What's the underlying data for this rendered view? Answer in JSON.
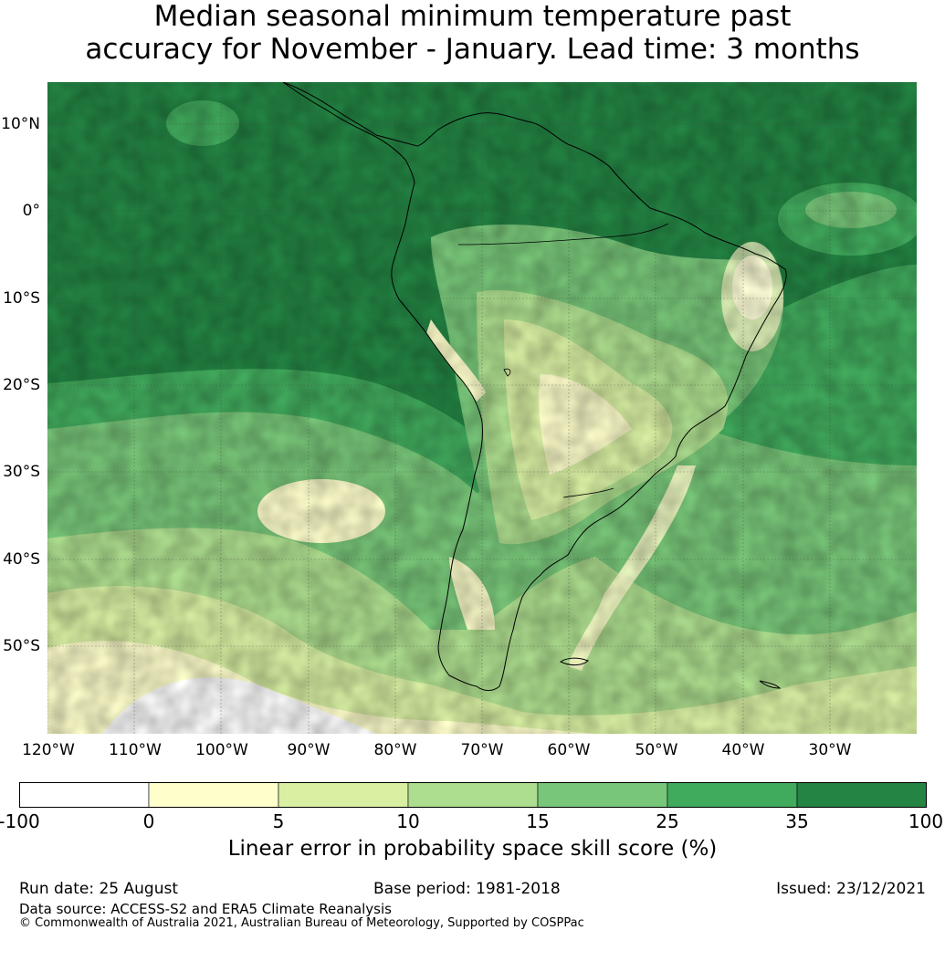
{
  "title": {
    "line1": "Median seasonal minimum temperature past",
    "line2": "accuracy for November - January. Lead time: 3 months"
  },
  "map": {
    "lat_labels": [
      "10°N",
      "0°",
      "10°S",
      "20°S",
      "30°S",
      "40°S",
      "50°S"
    ],
    "lon_labels": [
      "120°W",
      "110°W",
      "100°W",
      "90°W",
      "80°W",
      "70°W",
      "60°W",
      "50°W",
      "40°W",
      "30°W"
    ],
    "region": "South America",
    "skill_score_pattern": "mostly 25–100% over tropical Pacific and Atlantic; 0–15% over central-eastern South America and southern oceans; below 0% south of 45°S in the Pacific"
  },
  "colorbar": {
    "label": "Linear error in probability space skill score (%)",
    "ticks": [
      "-100",
      "0",
      "5",
      "10",
      "15",
      "25",
      "35",
      "100"
    ],
    "colors": [
      "#ffffff",
      "#ffffcc",
      "#d9f0a3",
      "#addd8e",
      "#78c679",
      "#41ab5d",
      "#238443"
    ]
  },
  "footer": {
    "run_date": "Run date: 25 August",
    "base_period": "Base period: 1981-2018",
    "issued": "Issued: 23/12/2021",
    "data_source": "Data source: ACCESS-S2 and ERA5 Climate Reanalysis",
    "copyright": "© Commonwealth of Australia 2021, Australian Bureau of Meteorology, Supported by COSPPac"
  }
}
